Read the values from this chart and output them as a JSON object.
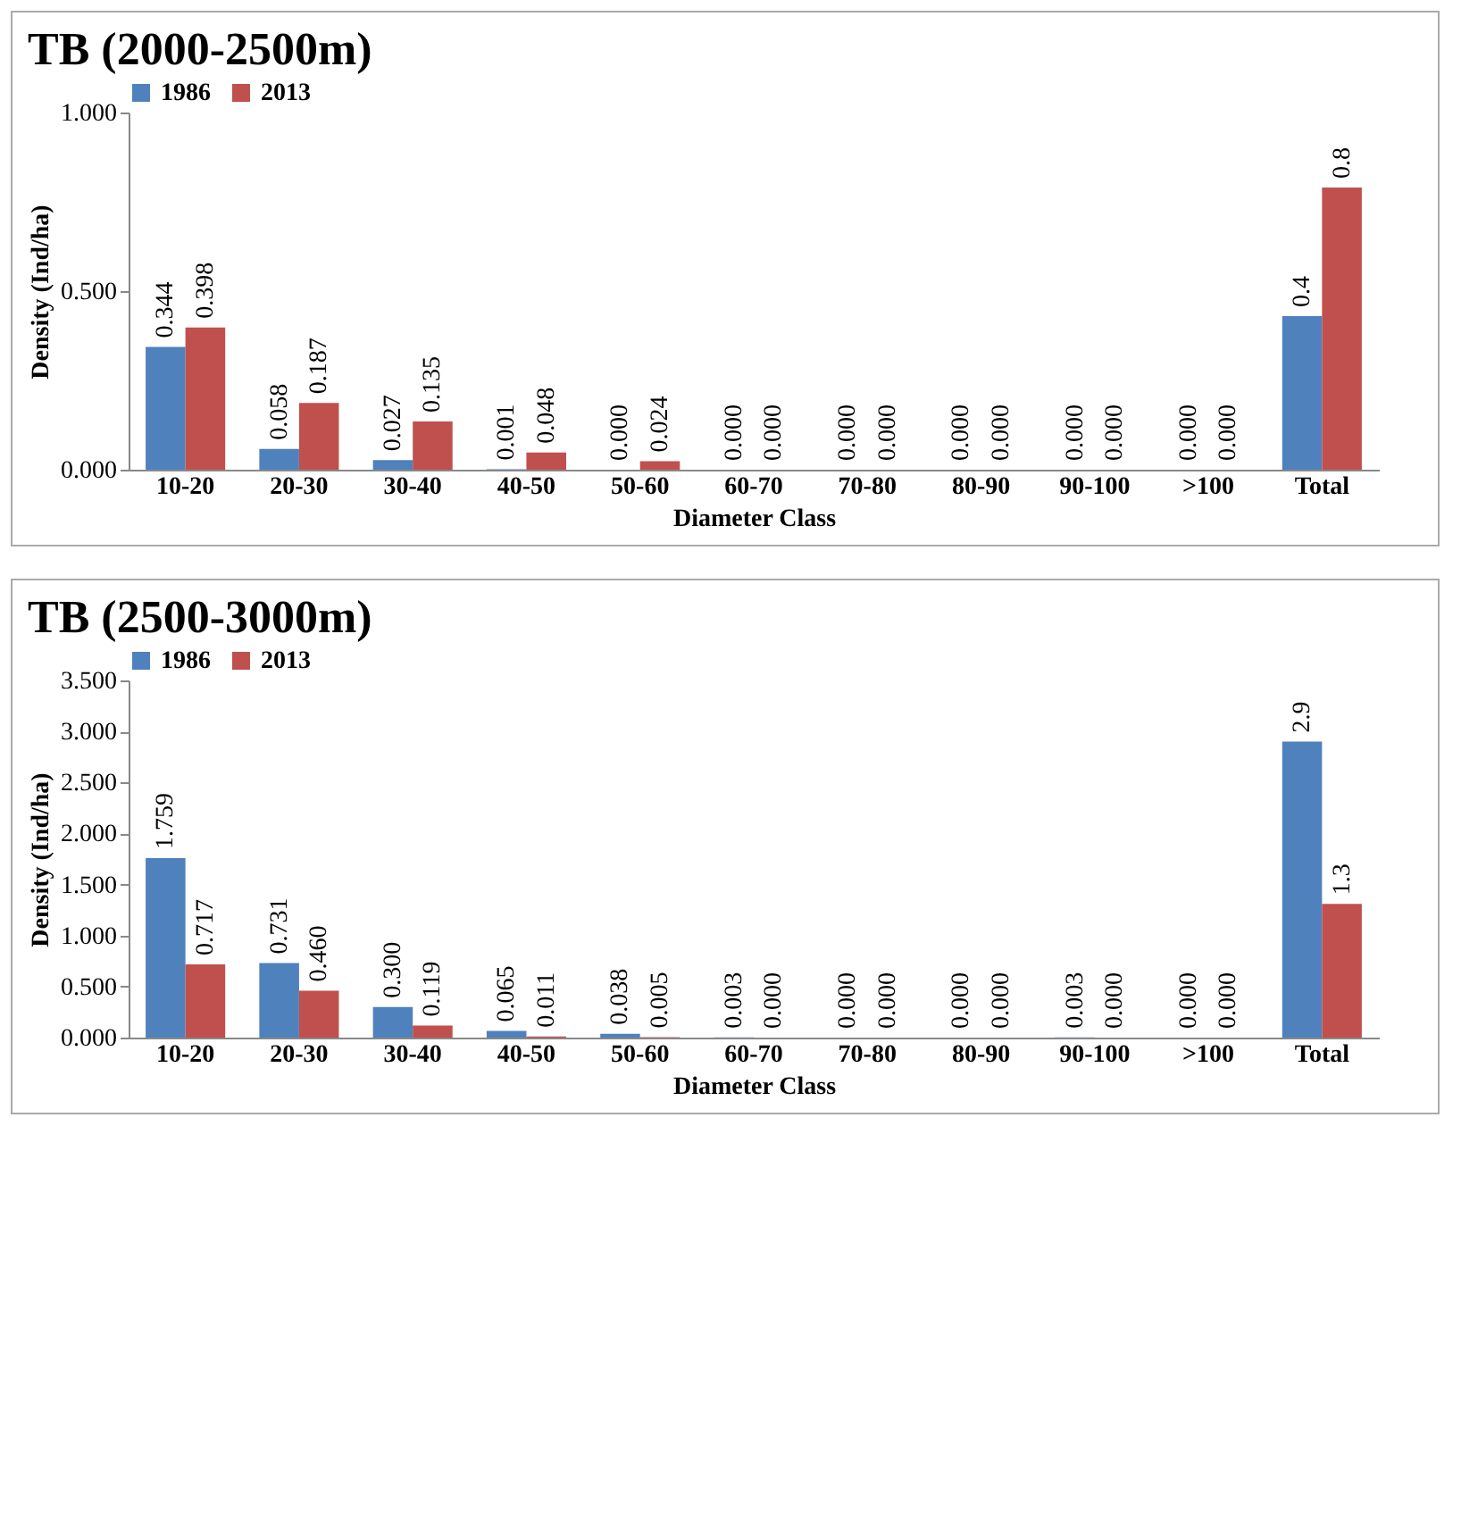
{
  "chart_data": [
    {
      "type": "bar",
      "title": "TB (2000-2500m)",
      "xlabel": "Diameter Class",
      "ylabel": "Density (Ind/ha)",
      "legend": "top",
      "categories": [
        "10-20",
        "20-30",
        "30-40",
        "40-50",
        "50-60",
        "60-70",
        "70-80",
        "80-90",
        "90-100",
        ">100",
        "Total"
      ],
      "ylim": [
        0,
        1
      ],
      "yticks": [
        {
          "value": 0,
          "label": "0.000"
        },
        {
          "value": 0.5,
          "label": "0.500"
        },
        {
          "value": 1,
          "label": "1.000"
        }
      ],
      "series": [
        {
          "name": "1986",
          "color": "#4f81bd",
          "values": [
            0.344,
            0.058,
            0.027,
            0.001,
            0.0,
            0.0,
            0.0,
            0.0,
            0.0,
            0.0,
            0.43
          ],
          "value_labels": [
            "0.344",
            "0.058",
            "0.027",
            "0.001",
            "0.000",
            "0.000",
            "0.000",
            "0.000",
            "0.000",
            "0.000",
            "0.4"
          ]
        },
        {
          "name": "2013",
          "color": "#c0504d",
          "values": [
            0.398,
            0.187,
            0.135,
            0.048,
            0.024,
            0.0,
            0.0,
            0.0,
            0.0,
            0.0,
            0.79
          ],
          "value_labels": [
            "0.398",
            "0.187",
            "0.135",
            "0.048",
            "0.024",
            "0.000",
            "0.000",
            "0.000",
            "0.000",
            "0.000",
            "0.8"
          ]
        }
      ]
    },
    {
      "type": "bar",
      "title": "TB (2500-3000m)",
      "xlabel": "Diameter Class",
      "ylabel": "Density (Ind/ha)",
      "legend": "top",
      "categories": [
        "10-20",
        "20-30",
        "30-40",
        "40-50",
        "50-60",
        "60-70",
        "70-80",
        "80-90",
        "90-100",
        ">100",
        "Total"
      ],
      "ylim": [
        0,
        3.5
      ],
      "yticks": [
        {
          "value": 0,
          "label": "0.000"
        },
        {
          "value": 0.5,
          "label": "0.500"
        },
        {
          "value": 1,
          "label": "1.000"
        },
        {
          "value": 1.5,
          "label": "1.500"
        },
        {
          "value": 2,
          "label": "2.000"
        },
        {
          "value": 2.5,
          "label": "2.500"
        },
        {
          "value": 3,
          "label": "3.000"
        },
        {
          "value": 3.5,
          "label": "3.500"
        }
      ],
      "series": [
        {
          "name": "1986",
          "color": "#4f81bd",
          "values": [
            1.759,
            0.731,
            0.3,
            0.065,
            0.038,
            0.003,
            0.0,
            0.0,
            0.003,
            0.0,
            2.9
          ],
          "value_labels": [
            "1.759",
            "0.731",
            "0.300",
            "0.065",
            "0.038",
            "0.003",
            "0.000",
            "0.000",
            "0.003",
            "0.000",
            "2.9"
          ]
        },
        {
          "name": "2013",
          "color": "#c0504d",
          "values": [
            0.717,
            0.46,
            0.119,
            0.011,
            0.005,
            0.0,
            0.0,
            0.0,
            0.0,
            0.0,
            1.31
          ],
          "value_labels": [
            "0.717",
            "0.460",
            "0.119",
            "0.011",
            "0.005",
            "0.000",
            "0.000",
            "0.000",
            "0.000",
            "0.000",
            "1.3"
          ]
        }
      ]
    }
  ]
}
